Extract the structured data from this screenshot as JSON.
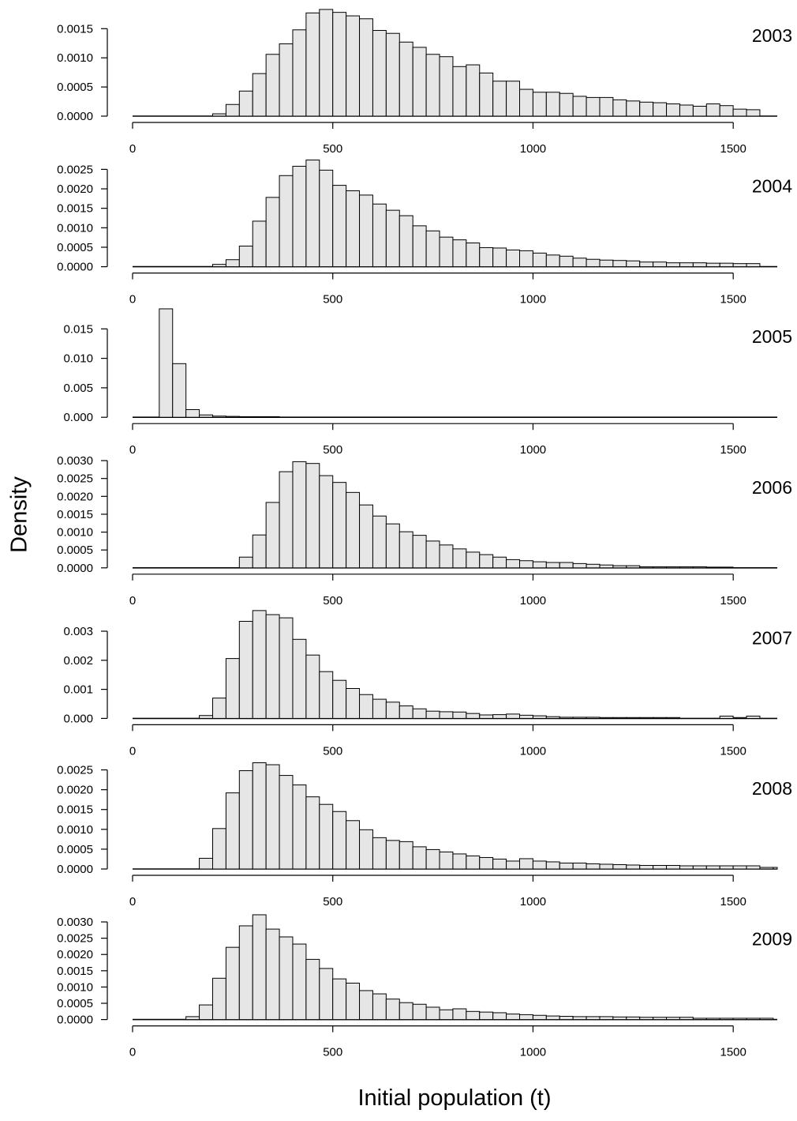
{
  "ylabel": "Density",
  "xlabel": "Initial population (t)",
  "chart_data": [
    {
      "type": "bar",
      "title": "2003",
      "x_ticks": [
        0,
        500,
        1000,
        1500
      ],
      "y_ticks": [
        "0.0000",
        "0.0005",
        "0.0010",
        "0.0015"
      ],
      "ylim": [
        0,
        0.00187
      ],
      "bin_width": 33.33,
      "bin_start": 200,
      "values": [
        4e-05,
        0.0002,
        0.00043,
        0.00073,
        0.00106,
        0.00124,
        0.00148,
        0.00177,
        0.00183,
        0.00178,
        0.00172,
        0.00167,
        0.00147,
        0.00142,
        0.00127,
        0.00118,
        0.00106,
        0.00102,
        0.00085,
        0.00088,
        0.00074,
        0.0006,
        0.0006,
        0.00046,
        0.00041,
        0.00041,
        0.00039,
        0.00034,
        0.00032,
        0.00032,
        0.00028,
        0.00026,
        0.00024,
        0.00023,
        0.00021,
        0.00019,
        0.00017,
        0.00021,
        0.00018,
        0.00012,
        0.00011
      ],
      "baseline_from": 0
    },
    {
      "type": "bar",
      "title": "2004",
      "x_ticks": [
        0,
        500,
        1000,
        1500
      ],
      "y_ticks": [
        "0.0000",
        "0.0005",
        "0.0010",
        "0.0015",
        "0.0020",
        "0.0025"
      ],
      "ylim": [
        0,
        0.0028
      ],
      "bin_width": 33.33,
      "bin_start": 200,
      "values": [
        6e-05,
        0.00018,
        0.00053,
        0.00117,
        0.00178,
        0.00234,
        0.00258,
        0.00274,
        0.00248,
        0.00209,
        0.00195,
        0.00184,
        0.00161,
        0.00145,
        0.00131,
        0.00105,
        0.00092,
        0.00076,
        0.00069,
        0.00061,
        0.00049,
        0.00048,
        0.00043,
        0.00041,
        0.00035,
        0.0003,
        0.00027,
        0.00022,
        0.00019,
        0.00017,
        0.00016,
        0.00015,
        0.00012,
        0.00012,
        0.0001,
        0.0001,
        0.0001,
        9e-05,
        9e-05,
        8e-05,
        8e-05
      ],
      "baseline_from": 0
    },
    {
      "type": "bar",
      "title": "2005",
      "x_ticks": [
        0,
        500,
        1000,
        1500
      ],
      "y_ticks": [
        "0.000",
        "0.005",
        "0.010",
        "0.015"
      ],
      "ylim": [
        0,
        0.0185
      ],
      "bin_width": 33.33,
      "bin_start": 66.67,
      "values": [
        0.0184,
        0.0091,
        0.0013,
        0.0004,
        0.0002,
        0.00015,
        0.0001,
        0.0001,
        0.0001
      ],
      "baseline_from": 0
    },
    {
      "type": "bar",
      "title": "2006",
      "x_ticks": [
        0,
        500,
        1000,
        1500
      ],
      "y_ticks": [
        "0.0000",
        "0.0005",
        "0.0010",
        "0.0015",
        "0.0020",
        "0.0025",
        "0.0030"
      ],
      "ylim": [
        0,
        0.00305
      ],
      "bin_width": 33.33,
      "bin_start": 266.67,
      "values": [
        0.0003,
        0.00092,
        0.00183,
        0.00269,
        0.00297,
        0.00292,
        0.00258,
        0.00239,
        0.00211,
        0.00176,
        0.00145,
        0.00123,
        0.00101,
        0.00091,
        0.00075,
        0.00064,
        0.00053,
        0.00044,
        0.00037,
        0.0003,
        0.00023,
        0.0002,
        0.00017,
        0.00015,
        0.00015,
        0.00012,
        0.0001,
        8e-05,
        6e-05,
        6e-05,
        3e-05,
        3e-05,
        3e-05,
        3e-05,
        3e-05,
        2e-05,
        2e-05
      ],
      "baseline_from": 0
    },
    {
      "type": "bar",
      "title": "2007",
      "x_ticks": [
        0,
        500,
        1000,
        1500
      ],
      "y_ticks": [
        "0.000",
        "0.001",
        "0.002",
        "0.003"
      ],
      "ylim": [
        0,
        0.00375
      ],
      "bin_width": 33.33,
      "bin_start": 166.67,
      "values": [
        0.0001,
        0.0007,
        0.00206,
        0.00334,
        0.00371,
        0.00357,
        0.00346,
        0.00272,
        0.00218,
        0.00161,
        0.00131,
        0.00103,
        0.00082,
        0.00066,
        0.00056,
        0.00043,
        0.00033,
        0.00025,
        0.00023,
        0.00022,
        0.00017,
        0.00012,
        0.00013,
        0.00015,
        0.00011,
        9e-05,
        6e-05,
        4e-05,
        4e-05,
        4e-05,
        3e-05,
        3e-05,
        3e-05,
        3e-05,
        3e-05,
        3e-05,
        0.0,
        0.0,
        0.0,
        8e-05,
        3e-05,
        8e-05
      ],
      "baseline_from": 0
    },
    {
      "type": "bar",
      "title": "2008",
      "x_ticks": [
        0,
        500,
        1000,
        1500
      ],
      "y_ticks": [
        "0.0000",
        "0.0005",
        "0.0010",
        "0.0015",
        "0.0020",
        "0.0025"
      ],
      "ylim": [
        0,
        0.00275
      ],
      "bin_width": 33.33,
      "bin_start": 166.67,
      "values": [
        0.00027,
        0.00102,
        0.00192,
        0.00248,
        0.00268,
        0.00263,
        0.00236,
        0.00212,
        0.00182,
        0.00163,
        0.00145,
        0.00122,
        0.00099,
        0.00079,
        0.00072,
        0.00069,
        0.00056,
        0.00049,
        0.00043,
        0.00038,
        0.00033,
        0.00029,
        0.00025,
        0.0002,
        0.00026,
        0.0002,
        0.00018,
        0.00015,
        0.00015,
        0.00013,
        0.00012,
        0.00011,
        0.0001,
        9e-05,
        9e-05,
        9e-05,
        8e-05,
        8e-05,
        8e-05,
        8e-05,
        8e-05,
        8e-05,
        4e-05,
        4e-05
      ],
      "baseline_from": 0
    },
    {
      "type": "bar",
      "title": "2009",
      "x_ticks": [
        0,
        500,
        1000,
        1500
      ],
      "y_ticks": [
        "0.0000",
        "0.0005",
        "0.0010",
        "0.0015",
        "0.0020",
        "0.0025",
        "0.0030"
      ],
      "ylim": [
        0,
        0.00335
      ],
      "bin_width": 33.33,
      "bin_start": 133.33,
      "values": [
        9e-05,
        0.00045,
        0.00127,
        0.00222,
        0.00288,
        0.00322,
        0.00278,
        0.00254,
        0.00232,
        0.00185,
        0.00157,
        0.00125,
        0.00112,
        0.00089,
        0.00079,
        0.00063,
        0.00052,
        0.00047,
        0.00038,
        0.0003,
        0.00033,
        0.00025,
        0.00023,
        0.00021,
        0.00017,
        0.00015,
        0.00013,
        0.00011,
        0.0001,
        9e-05,
        9e-05,
        9e-05,
        8e-05,
        8e-05,
        7e-05,
        7e-05,
        7e-05,
        7e-05,
        4e-05,
        4e-05,
        4e-05,
        4e-05,
        4e-05,
        4e-05
      ],
      "baseline_from": 0
    }
  ]
}
